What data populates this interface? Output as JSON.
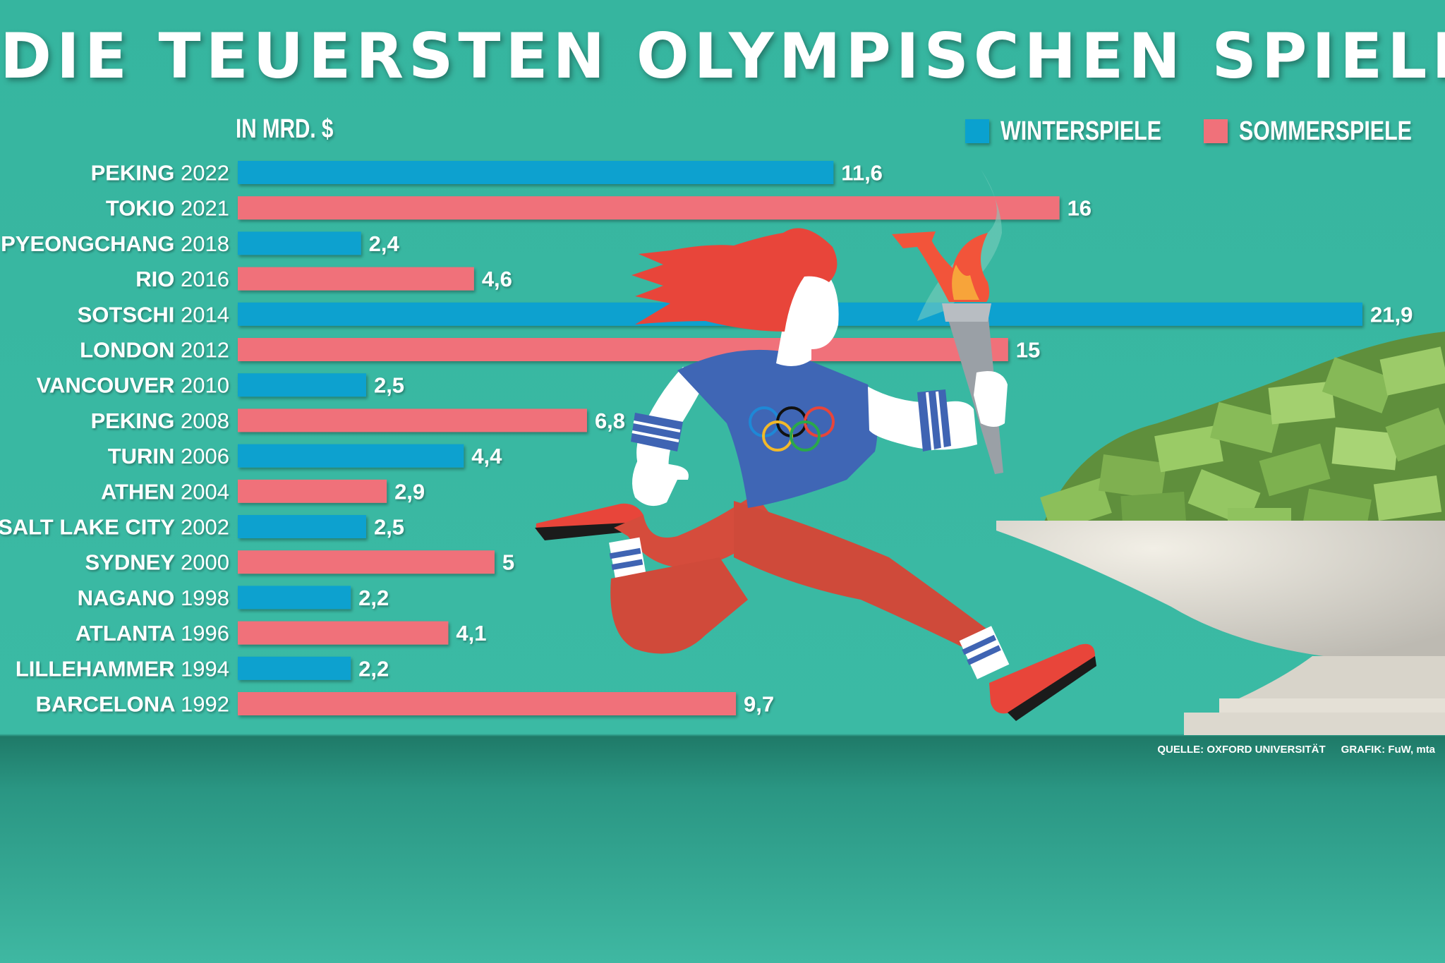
{
  "title": "DIE TEUERSTEN OLYMPISCHEN SPIELE",
  "unit_label": "IN MRD. $",
  "legend": [
    {
      "label": "WINTERSPIELE",
      "color": "#0aa1cf"
    },
    {
      "label": "SOMMERSPIELE",
      "color": "#f0717a"
    }
  ],
  "colors": {
    "winter": "#0aa1cf",
    "summer": "#f0717a",
    "background": "#3bb9a3",
    "floor": "#2a9683"
  },
  "icons": [
    "torch-runner-illustration",
    "olympic-rings-icon",
    "torch-icon",
    "money-bowl-illustration"
  ],
  "source": "QUELLE: OXFORD UNIVERSITÄT",
  "credit": "GRAFIK: FuW, mta",
  "chart_data": {
    "type": "bar",
    "orientation": "horizontal",
    "unit": "Mrd. $",
    "xlim": [
      0,
      22
    ],
    "grid": false,
    "legend_position": "top-right",
    "categories": [
      {
        "city": "PEKING",
        "year": "2022",
        "season": "winter"
      },
      {
        "city": "TOKIO",
        "year": "2021",
        "season": "summer"
      },
      {
        "city": "PYEONGCHANG",
        "year": "2018",
        "season": "winter"
      },
      {
        "city": "RIO",
        "year": "2016",
        "season": "summer"
      },
      {
        "city": "SOTSCHI",
        "year": "2014",
        "season": "winter"
      },
      {
        "city": "LONDON",
        "year": "2012",
        "season": "summer"
      },
      {
        "city": "VANCOUVER",
        "year": "2010",
        "season": "winter"
      },
      {
        "city": "PEKING",
        "year": "2008",
        "season": "summer"
      },
      {
        "city": "TURIN",
        "year": "2006",
        "season": "winter"
      },
      {
        "city": "ATHEN",
        "year": "2004",
        "season": "summer"
      },
      {
        "city": "SALT LAKE CITY",
        "year": "2002",
        "season": "winter"
      },
      {
        "city": "SYDNEY",
        "year": "2000",
        "season": "summer"
      },
      {
        "city": "NAGANO",
        "year": "1998",
        "season": "winter"
      },
      {
        "city": "ATLANTA",
        "year": "1996",
        "season": "summer"
      },
      {
        "city": "LILLEHAMMER",
        "year": "1994",
        "season": "winter"
      },
      {
        "city": "BARCELONA",
        "year": "1992",
        "season": "summer"
      }
    ],
    "values": [
      11.6,
      16,
      2.4,
      4.6,
      21.9,
      15,
      2.5,
      6.8,
      4.4,
      2.9,
      2.5,
      5,
      2.2,
      4.1,
      2.2,
      9.7
    ],
    "value_labels": [
      "11,6",
      "16",
      "2,4",
      "4,6",
      "21,9",
      "15",
      "2,5",
      "6,8",
      "4,4",
      "2,9",
      "2,5",
      "5",
      "2,2",
      "4,1",
      "2,2",
      "9,7"
    ]
  }
}
